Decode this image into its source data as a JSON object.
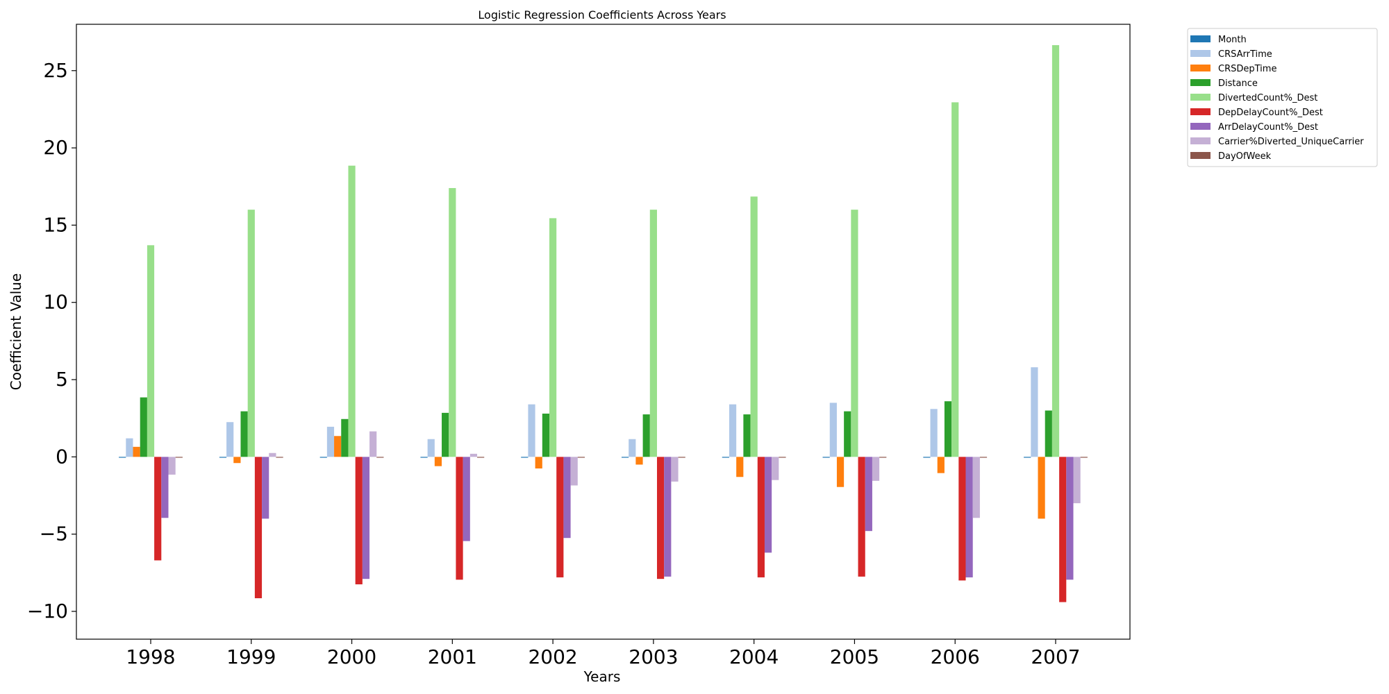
{
  "chart_data": {
    "type": "bar",
    "title": "Logistic Regression Coefficients Across Years",
    "xlabel": "Years",
    "ylabel": "Coefficient Value",
    "categories": [
      "1998",
      "1999",
      "2000",
      "2001",
      "2002",
      "2003",
      "2004",
      "2005",
      "2006",
      "2007"
    ],
    "ylim": [
      -11.8,
      28.0
    ],
    "yticks": [
      -10,
      -5,
      0,
      5,
      10,
      15,
      20,
      25
    ],
    "ytick_labels": [
      "−10",
      "−5",
      "0",
      "5",
      "10",
      "15",
      "20",
      "25"
    ],
    "grid": false,
    "legend_position": "outside-top-right",
    "series": [
      {
        "name": "Month",
        "color": "#1f77b4",
        "values": [
          -0.05,
          -0.05,
          0.0,
          0.0,
          -0.05,
          0.0,
          0.0,
          0.0,
          0.0,
          0.0
        ]
      },
      {
        "name": "CRSArrTime",
        "color": "#aec7e8",
        "values": [
          1.2,
          2.25,
          1.95,
          1.15,
          3.4,
          1.15,
          3.4,
          3.5,
          3.1,
          5.8
        ]
      },
      {
        "name": "CRSDepTime",
        "color": "#ff7f0e",
        "values": [
          0.65,
          -0.4,
          1.35,
          -0.6,
          -0.75,
          -0.5,
          -1.3,
          -1.95,
          -1.05,
          -4.0
        ]
      },
      {
        "name": "Distance",
        "color": "#2ca02c",
        "values": [
          3.85,
          2.95,
          2.45,
          2.85,
          2.8,
          2.75,
          2.75,
          2.95,
          3.6,
          3.0
        ]
      },
      {
        "name": "DivertedCount%_Dest",
        "color": "#98df8a",
        "values": [
          13.7,
          16.0,
          18.85,
          17.4,
          15.45,
          16.0,
          16.85,
          16.0,
          22.95,
          26.65
        ]
      },
      {
        "name": "DepDelayCount%_Dest",
        "color": "#d62728",
        "values": [
          -6.7,
          -9.15,
          -8.25,
          -7.95,
          -7.8,
          -7.9,
          -7.8,
          -7.75,
          -8.0,
          -9.4
        ]
      },
      {
        "name": "ArrDelayCount%_Dest",
        "color": "#9467bd",
        "values": [
          -3.95,
          -4.0,
          -7.9,
          -5.45,
          -5.25,
          -7.75,
          -6.2,
          -4.8,
          -7.8,
          -7.95
        ]
      },
      {
        "name": "Carrier%Diverted_UniqueCarrier",
        "color": "#c5b0d5",
        "values": [
          -1.15,
          0.25,
          1.65,
          0.2,
          -1.85,
          -1.6,
          -1.5,
          -1.55,
          -3.95,
          -3.0
        ]
      },
      {
        "name": "DayOfWeek",
        "color": "#8c564b",
        "values": [
          0.0,
          0.0,
          0.0,
          0.0,
          0.0,
          0.0,
          0.0,
          0.0,
          0.0,
          -0.05
        ]
      }
    ]
  }
}
